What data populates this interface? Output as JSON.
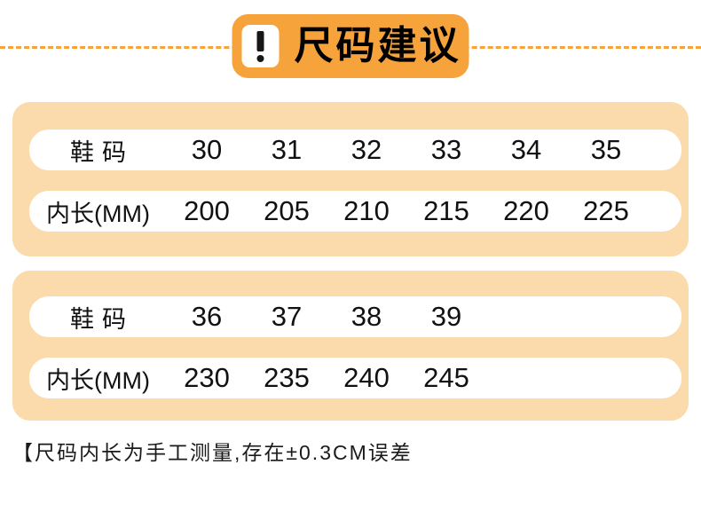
{
  "header": {
    "title": "尺码建议",
    "icon": "exclamation"
  },
  "size_tables": [
    {
      "name": "sizes-30-35",
      "rows": [
        {
          "label": "鞋码",
          "values": [
            "30",
            "31",
            "32",
            "33",
            "34",
            "35"
          ]
        },
        {
          "label": "内长(MM)",
          "values": [
            "200",
            "205",
            "210",
            "215",
            "220",
            "225"
          ]
        }
      ]
    },
    {
      "name": "sizes-36-39",
      "rows": [
        {
          "label": "鞋码",
          "values": [
            "36",
            "37",
            "38",
            "39",
            "",
            ""
          ]
        },
        {
          "label": "内长(MM)",
          "values": [
            "230",
            "235",
            "240",
            "245",
            "",
            ""
          ]
        }
      ]
    }
  ],
  "footnote": "【尺码内长为手工测量,存在±0.3CM误差",
  "colors": {
    "accent": "#F7A33C",
    "panel_background": "#FBDAAB",
    "row_background": "#FFFFFF",
    "text": "#111111"
  },
  "chart_data": [
    {
      "type": "table",
      "title": "尺码建议",
      "row_labels": [
        "鞋码",
        "内长(MM)"
      ],
      "shoe_sizes": [
        30,
        31,
        32,
        33,
        34,
        35
      ],
      "inner_length_mm": [
        200,
        205,
        210,
        215,
        220,
        225
      ]
    },
    {
      "type": "table",
      "row_labels": [
        "鞋码",
        "内长(MM)"
      ],
      "shoe_sizes": [
        36,
        37,
        38,
        39
      ],
      "inner_length_mm": [
        230,
        235,
        240,
        245
      ]
    }
  ]
}
